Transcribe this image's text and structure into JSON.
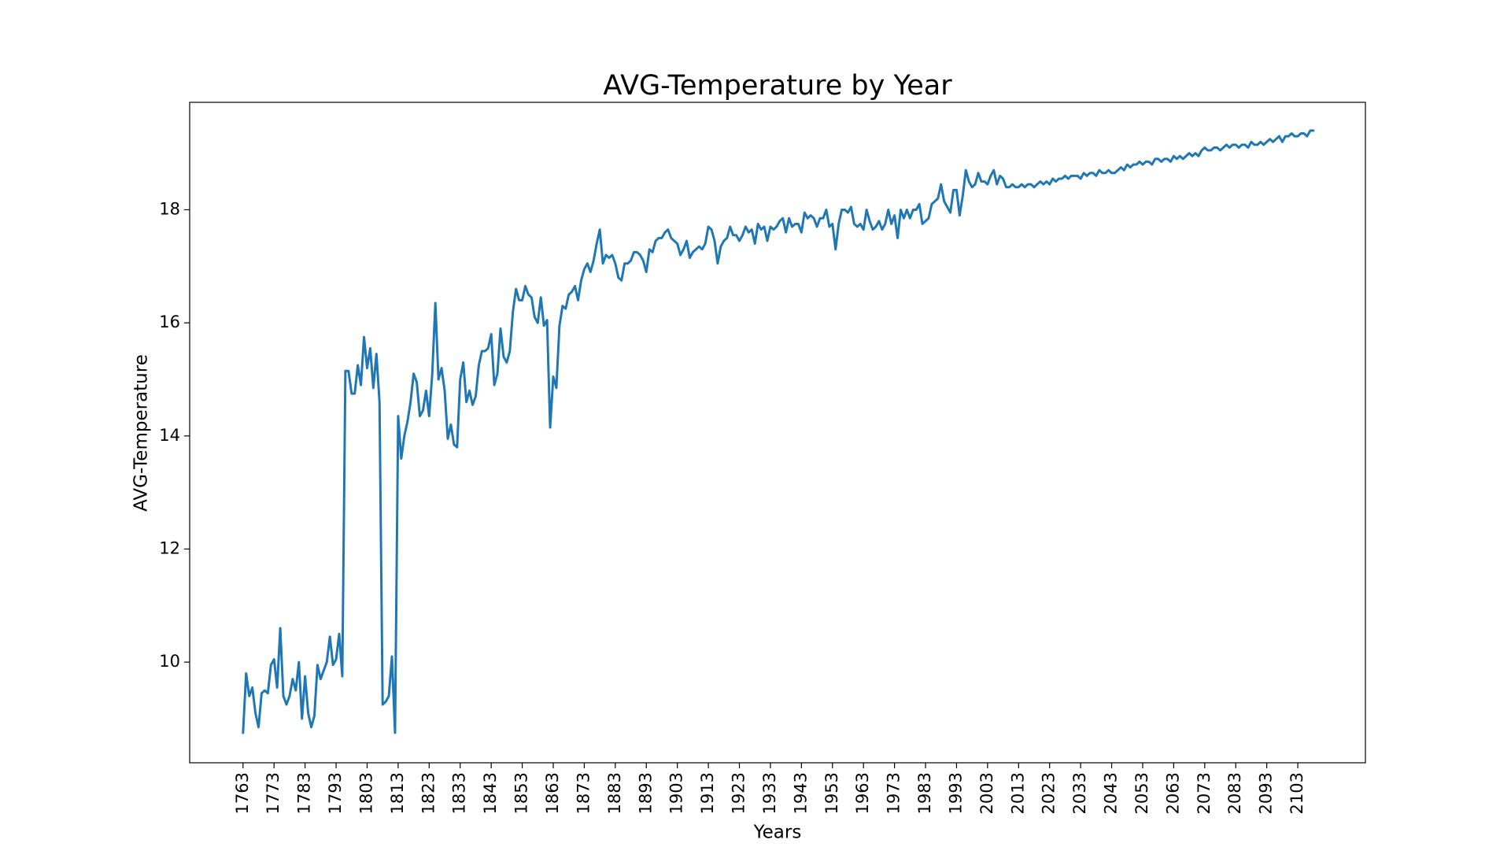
{
  "chart_data": {
    "type": "line",
    "title": "AVG-Temperature by Year",
    "x_label": "Years",
    "y_label": "AVG-Temperature",
    "x": [
      1763,
      1764,
      1765,
      1766,
      1767,
      1768,
      1769,
      1770,
      1771,
      1772,
      1773,
      1774,
      1775,
      1776,
      1777,
      1778,
      1779,
      1780,
      1781,
      1782,
      1783,
      1784,
      1785,
      1786,
      1787,
      1788,
      1789,
      1790,
      1791,
      1792,
      1793,
      1794,
      1795,
      1796,
      1797,
      1798,
      1799,
      1800,
      1801,
      1802,
      1803,
      1804,
      1805,
      1806,
      1807,
      1808,
      1809,
      1810,
      1811,
      1812,
      1813,
      1814,
      1815,
      1816,
      1817,
      1818,
      1819,
      1820,
      1821,
      1822,
      1823,
      1824,
      1825,
      1826,
      1827,
      1828,
      1829,
      1830,
      1831,
      1832,
      1833,
      1834,
      1835,
      1836,
      1837,
      1838,
      1839,
      1840,
      1841,
      1842,
      1843,
      1844,
      1845,
      1846,
      1847,
      1848,
      1849,
      1850,
      1851,
      1852,
      1853,
      1854,
      1855,
      1856,
      1857,
      1858,
      1859,
      1860,
      1861,
      1862,
      1863,
      1864,
      1865,
      1866,
      1867,
      1868,
      1869,
      1870,
      1871,
      1872,
      1873,
      1874,
      1875,
      1876,
      1877,
      1878,
      1879,
      1880,
      1881,
      1882,
      1883,
      1884,
      1885,
      1886,
      1887,
      1888,
      1889,
      1890,
      1891,
      1892,
      1893,
      1894,
      1895,
      1896,
      1897,
      1898,
      1899,
      1900,
      1901,
      1902,
      1903,
      1904,
      1905,
      1906,
      1907,
      1908,
      1909,
      1910,
      1911,
      1912,
      1913,
      1914,
      1915,
      1916,
      1917,
      1918,
      1919,
      1920,
      1921,
      1922,
      1923,
      1924,
      1925,
      1926,
      1927,
      1928,
      1929,
      1930,
      1931,
      1932,
      1933,
      1934,
      1935,
      1936,
      1937,
      1938,
      1939,
      1940,
      1941,
      1942,
      1943,
      1944,
      1945,
      1946,
      1947,
      1948,
      1949,
      1950,
      1951,
      1952,
      1953,
      1954,
      1955,
      1956,
      1957,
      1958,
      1959,
      1960,
      1961,
      1962,
      1963,
      1964,
      1965,
      1966,
      1967,
      1968,
      1969,
      1970,
      1971,
      1972,
      1973,
      1974,
      1975,
      1976,
      1977,
      1978,
      1979,
      1980,
      1981,
      1982,
      1983,
      1984,
      1985,
      1986,
      1987,
      1988,
      1989,
      1990,
      1991,
      1992,
      1993,
      1994,
      1995,
      1996,
      1997,
      1998,
      1999,
      2000,
      2001,
      2002,
      2003,
      2004,
      2005,
      2006,
      2007,
      2008,
      2009,
      2010,
      2011,
      2012,
      2013,
      2014,
      2015,
      2016,
      2017,
      2018,
      2019,
      2020,
      2021,
      2022,
      2023,
      2024,
      2025,
      2026,
      2027,
      2028,
      2029,
      2030,
      2031,
      2032,
      2033,
      2034,
      2035,
      2036,
      2037,
      2038,
      2039,
      2040,
      2041,
      2042,
      2043,
      2044,
      2045,
      2046,
      2047,
      2048,
      2049,
      2050,
      2051,
      2052,
      2053,
      2054,
      2055,
      2056,
      2057,
      2058,
      2059,
      2060,
      2061,
      2062,
      2063,
      2064,
      2065,
      2066,
      2067,
      2068,
      2069,
      2070,
      2071,
      2072,
      2073,
      2074,
      2075,
      2076,
      2077,
      2078,
      2079,
      2080,
      2081,
      2082,
      2083,
      2084,
      2085,
      2086,
      2087,
      2088,
      2089,
      2090,
      2091,
      2092,
      2093,
      2094,
      2095,
      2096,
      2097,
      2098,
      2099,
      2100,
      2101,
      2102,
      2103,
      2104,
      2105,
      2106,
      2107,
      2108
    ],
    "series": [
      {
        "color": "#1f77b4",
        "values": [
          8.75,
          9.8,
          9.4,
          9.55,
          9.1,
          8.85,
          9.45,
          9.5,
          9.45,
          9.95,
          10.05,
          9.55,
          10.6,
          9.4,
          9.25,
          9.4,
          9.7,
          9.5,
          10.0,
          9.0,
          9.75,
          9.1,
          8.85,
          9.05,
          9.95,
          9.7,
          9.85,
          10.0,
          10.45,
          9.95,
          10.05,
          10.5,
          9.75,
          15.15,
          15.15,
          14.75,
          14.75,
          15.25,
          14.9,
          15.75,
          15.2,
          15.55,
          14.85,
          15.45,
          14.6,
          9.25,
          9.3,
          9.4,
          10.1,
          8.75,
          14.35,
          13.6,
          14.0,
          14.25,
          14.6,
          15.1,
          14.95,
          14.35,
          14.45,
          14.8,
          14.35,
          15.1,
          16.35,
          15.0,
          15.2,
          14.8,
          13.95,
          14.2,
          13.85,
          13.8,
          15.0,
          15.3,
          14.6,
          14.8,
          14.55,
          14.7,
          15.25,
          15.5,
          15.5,
          15.55,
          15.8,
          14.9,
          15.1,
          15.9,
          15.4,
          15.3,
          15.5,
          16.2,
          16.6,
          16.4,
          16.4,
          16.65,
          16.5,
          16.45,
          16.1,
          16.0,
          16.45,
          15.95,
          16.05,
          14.15,
          15.05,
          14.85,
          15.95,
          16.3,
          16.25,
          16.5,
          16.55,
          16.65,
          16.4,
          16.75,
          16.95,
          17.05,
          16.9,
          17.1,
          17.4,
          17.65,
          17.05,
          17.2,
          17.15,
          17.2,
          17.05,
          16.8,
          16.75,
          17.05,
          17.05,
          17.1,
          17.25,
          17.25,
          17.2,
          17.1,
          16.9,
          17.3,
          17.25,
          17.45,
          17.5,
          17.5,
          17.6,
          17.65,
          17.5,
          17.45,
          17.4,
          17.2,
          17.3,
          17.45,
          17.15,
          17.25,
          17.3,
          17.35,
          17.3,
          17.4,
          17.7,
          17.65,
          17.45,
          17.05,
          17.35,
          17.45,
          17.5,
          17.7,
          17.55,
          17.55,
          17.45,
          17.55,
          17.7,
          17.6,
          17.65,
          17.4,
          17.75,
          17.65,
          17.7,
          17.45,
          17.7,
          17.65,
          17.7,
          17.8,
          17.85,
          17.6,
          17.85,
          17.7,
          17.75,
          17.75,
          17.6,
          17.95,
          17.85,
          17.9,
          17.85,
          17.7,
          17.85,
          17.85,
          18.0,
          17.7,
          17.75,
          17.3,
          17.75,
          18.0,
          18.0,
          17.95,
          18.05,
          17.75,
          17.7,
          17.75,
          17.65,
          18.0,
          17.8,
          17.65,
          17.7,
          17.8,
          17.65,
          17.75,
          18.0,
          17.75,
          17.9,
          17.5,
          18.0,
          17.85,
          18.0,
          17.85,
          18.0,
          18.0,
          18.1,
          17.75,
          17.8,
          17.85,
          18.1,
          18.15,
          18.2,
          18.45,
          18.15,
          18.05,
          17.95,
          18.35,
          18.35,
          17.9,
          18.25,
          18.7,
          18.5,
          18.4,
          18.45,
          18.65,
          18.5,
          18.5,
          18.45,
          18.6,
          18.7,
          18.45,
          18.6,
          18.55,
          18.4,
          18.4,
          18.45,
          18.4,
          18.4,
          18.45,
          18.4,
          18.45,
          18.45,
          18.4,
          18.45,
          18.5,
          18.45,
          18.5,
          18.45,
          18.55,
          18.5,
          18.55,
          18.55,
          18.6,
          18.55,
          18.6,
          18.6,
          18.6,
          18.55,
          18.65,
          18.6,
          18.65,
          18.65,
          18.6,
          18.7,
          18.65,
          18.65,
          18.7,
          18.65,
          18.65,
          18.7,
          18.75,
          18.7,
          18.8,
          18.75,
          18.8,
          18.8,
          18.85,
          18.8,
          18.85,
          18.85,
          18.8,
          18.9,
          18.9,
          18.85,
          18.9,
          18.9,
          18.85,
          18.95,
          18.9,
          18.95,
          18.9,
          18.95,
          19.0,
          18.95,
          19.0,
          18.95,
          19.05,
          19.1,
          19.05,
          19.05,
          19.1,
          19.1,
          19.05,
          19.1,
          19.15,
          19.1,
          19.15,
          19.15,
          19.1,
          19.15,
          19.15,
          19.1,
          19.2,
          19.15,
          19.15,
          19.2,
          19.15,
          19.2,
          19.25,
          19.2,
          19.25,
          19.3,
          19.2,
          19.3,
          19.3,
          19.35,
          19.3,
          19.3,
          19.35,
          19.35,
          19.3,
          19.4,
          19.4
        ]
      }
    ],
    "xlim": [
      1745.8,
      2124.8
    ],
    "xticks": [
      1763,
      1773,
      1783,
      1793,
      1803,
      1813,
      1823,
      1833,
      1843,
      1853,
      1863,
      1873,
      1883,
      1893,
      1903,
      1913,
      1923,
      1933,
      1943,
      1953,
      1963,
      1973,
      1983,
      1993,
      2003,
      2013,
      2023,
      2033,
      2043,
      2053,
      2063,
      2073,
      2083,
      2093,
      2103
    ],
    "ylim": [
      8.22,
      19.9
    ],
    "yticks": [
      10,
      12,
      14,
      16,
      18
    ],
    "grid": false
  }
}
